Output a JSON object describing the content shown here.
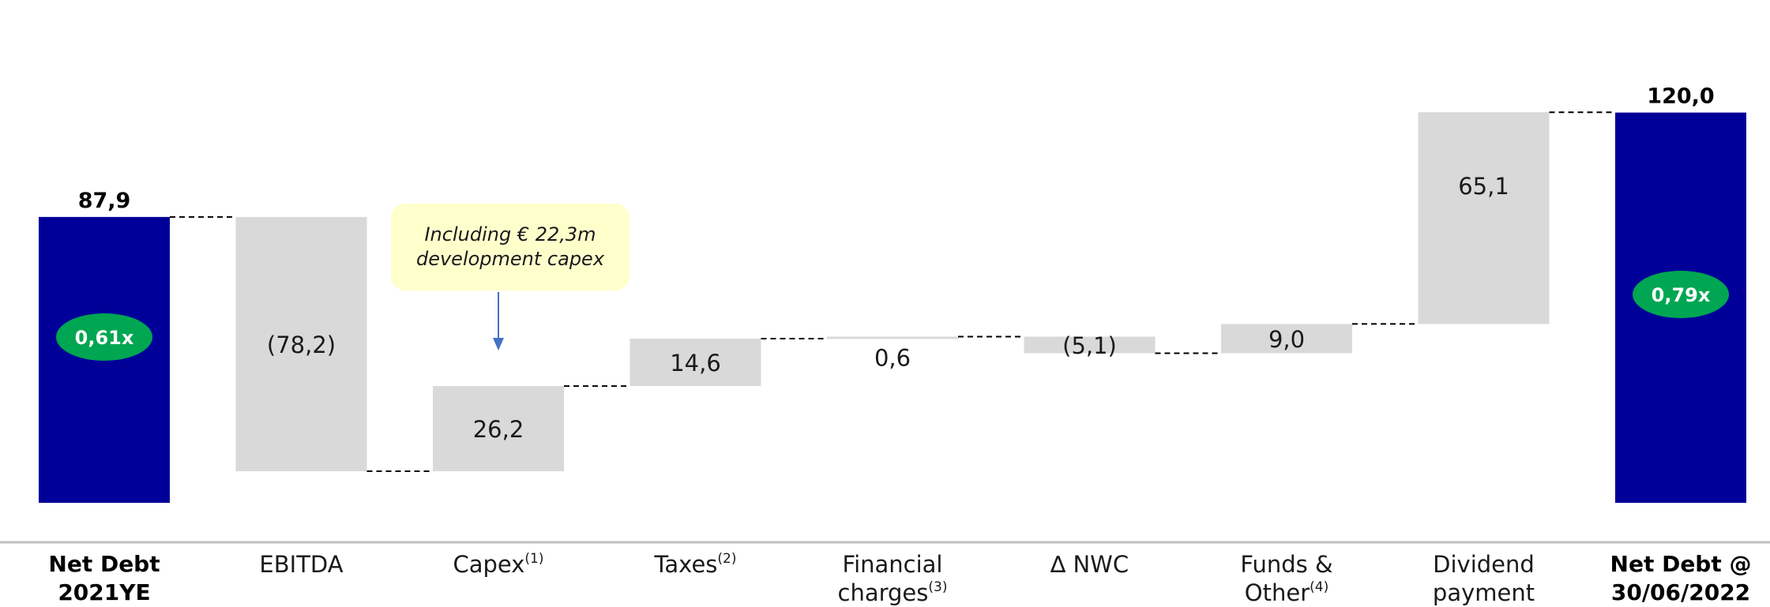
{
  "chart_data": {
    "type": "bar",
    "subtype": "waterfall",
    "categories": [
      {
        "label": "Net Debt 2021YE",
        "sup": ""
      },
      {
        "label": "EBITDA",
        "sup": ""
      },
      {
        "label": "Capex",
        "sup": "(1)"
      },
      {
        "label": "Taxes",
        "sup": "(2)"
      },
      {
        "label": "Financial charges",
        "sup": "(3)"
      },
      {
        "label": "∆ NWC",
        "sup": ""
      },
      {
        "label": "Funds & Other",
        "sup": "(4)"
      },
      {
        "label": "Dividend payment",
        "sup": ""
      },
      {
        "label": "Net Debt @ 30/06/2022",
        "sup": ""
      }
    ],
    "values": [
      87.9,
      -78.2,
      26.2,
      14.6,
      0.6,
      -5.1,
      9.0,
      65.1,
      120.0
    ],
    "value_labels": [
      "87,9",
      "(78,2)",
      "26,2",
      "14,6",
      "0,6",
      "(5,1)",
      "9,0",
      "65,1",
      "120,0"
    ],
    "bar_kinds": [
      "total",
      "delta",
      "delta",
      "delta",
      "delta",
      "delta",
      "delta",
      "delta",
      "total"
    ],
    "ratio_badges": [
      "0,61x",
      "0,79x"
    ],
    "annotation": {
      "line1": "Including € 22,3m",
      "line2": "development capex",
      "target_category": "Capex"
    },
    "ylim": [
      0,
      120
    ],
    "grid": false,
    "legend": "none",
    "colors": {
      "total": "#000099",
      "delta": "#d9d9d9",
      "badge": "#00a651",
      "connector": "#000000",
      "axis": "#bfbfbf",
      "note_bg": "#ffffcc",
      "arrow": "#4472c4"
    }
  }
}
